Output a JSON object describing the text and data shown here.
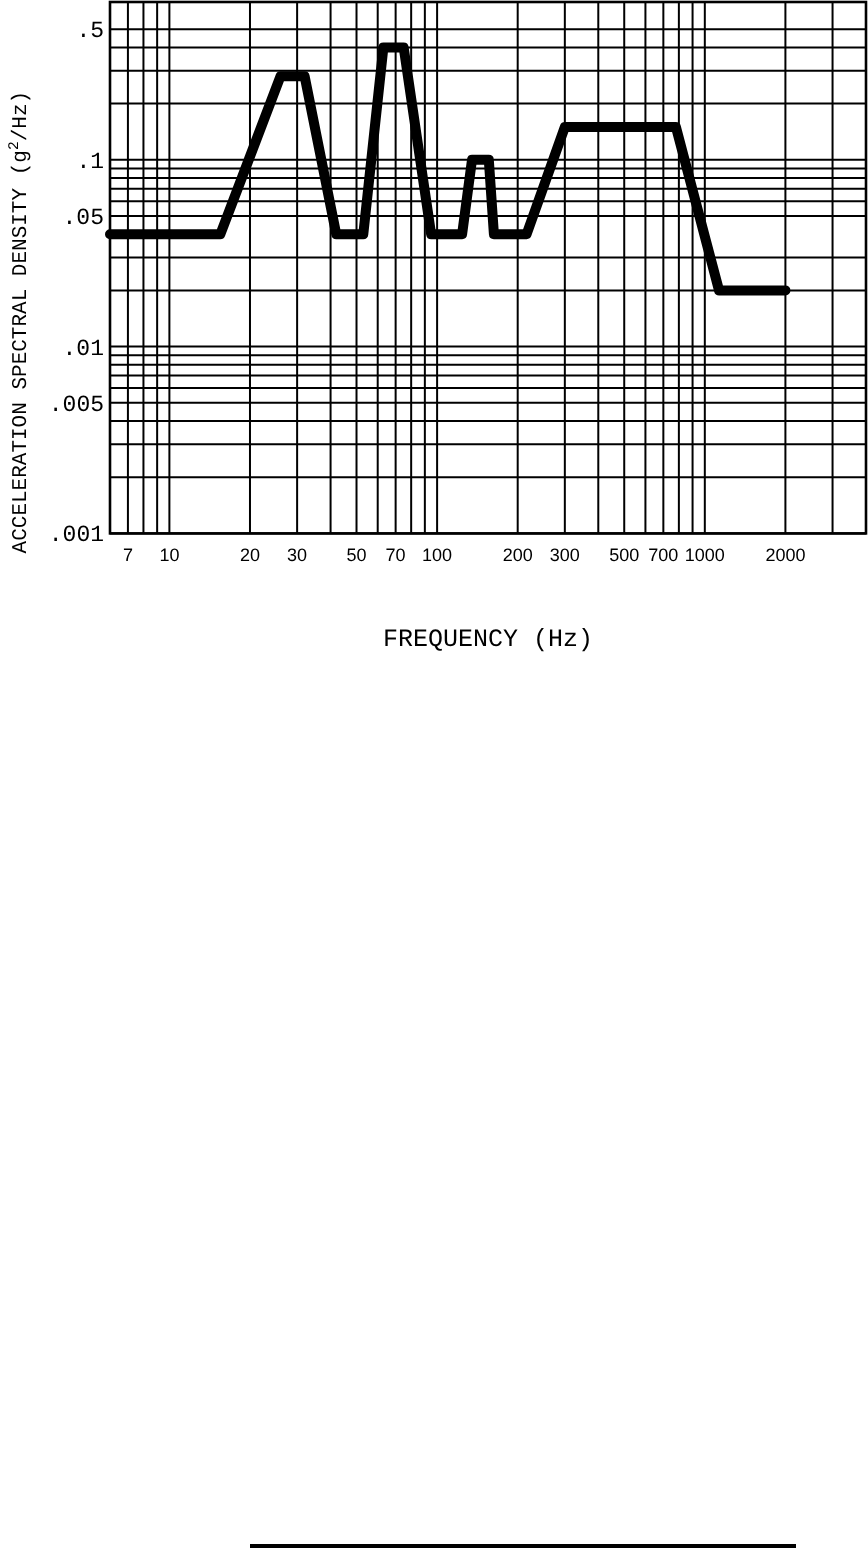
{
  "chart_data": {
    "type": "line",
    "xlabel": "FREQUENCY (Hz)",
    "ylabel": "ACCELERATION SPECTRAL DENSITY (g$^{2}$/Hz)",
    "x": [
      6,
      15.5,
      26,
      32,
      42,
      53,
      63,
      75,
      95,
      124,
      135,
      156,
      163,
      216,
      300,
      780,
      1130,
      2000
    ],
    "series": [
      {
        "color": "#000000",
        "values": [
          0.04,
          0.04,
          0.28,
          0.28,
          0.04,
          0.04,
          0.4,
          0.4,
          0.04,
          0.04,
          0.1,
          0.1,
          0.04,
          0.04,
          0.15,
          0.15,
          0.02,
          0.02
        ]
      }
    ],
    "log": "xy",
    "xlim": [
      6,
      4000
    ],
    "ylim": [
      0.001,
      0.7
    ],
    "xticks": [
      7,
      {
        "value": 8,
        "label": null
      },
      {
        "value": 9,
        "label": null
      },
      10,
      20,
      30,
      {
        "value": 40,
        "label": null
      },
      50,
      {
        "value": 60,
        "label": null
      },
      70,
      {
        "value": 80,
        "label": null
      },
      {
        "value": 90,
        "label": null
      },
      100,
      200,
      300,
      {
        "value": 400,
        "label": null
      },
      500,
      {
        "value": 600,
        "label": null
      },
      700,
      {
        "value": 800,
        "label": null
      },
      {
        "value": 900,
        "label": null
      },
      1000,
      2000,
      {
        "value": 3000,
        "label": null
      }
    ],
    "yticks": [
      {
        "value": 0.001,
        "label": ".001"
      },
      {
        "value": 0.002,
        "label": null
      },
      {
        "value": 0.003,
        "label": null
      },
      {
        "value": 0.004,
        "label": null
      },
      {
        "value": 0.005,
        "label": ".005"
      },
      {
        "value": 0.006,
        "label": null
      },
      {
        "value": 0.007,
        "label": null
      },
      {
        "value": 0.008,
        "label": null
      },
      {
        "value": 0.009,
        "label": null
      },
      {
        "value": 0.01,
        "label": ".01"
      },
      {
        "value": 0.02,
        "label": null
      },
      {
        "value": 0.03,
        "label": null
      },
      {
        "value": 0.05,
        "label": ".05"
      },
      {
        "value": 0.06,
        "label": null
      },
      {
        "value": 0.07,
        "label": null
      },
      {
        "value": 0.08,
        "label": null
      },
      {
        "value": 0.09,
        "label": null
      },
      {
        "value": 0.1,
        "label": ".1"
      },
      {
        "value": 0.2,
        "label": null
      },
      {
        "value": 0.3,
        "label": null
      },
      {
        "value": 0.4,
        "label": null
      },
      {
        "value": 0.5,
        "label": ".5"
      }
    ],
    "grid": true,
    "line_style": "solid"
  }
}
